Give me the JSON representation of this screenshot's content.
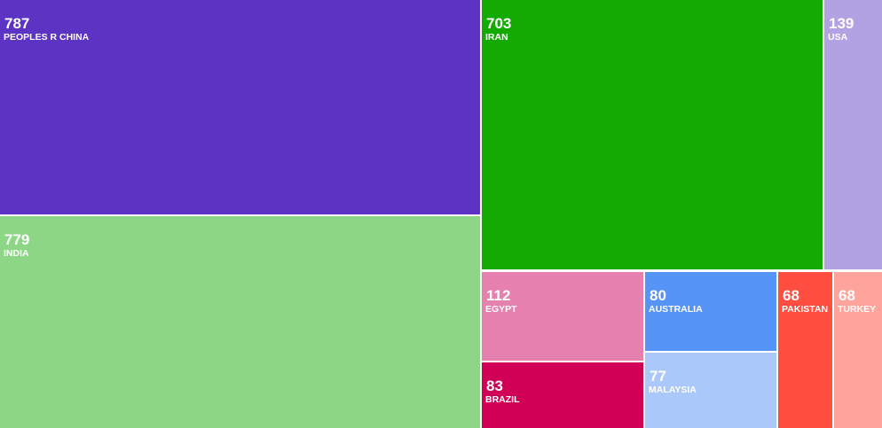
{
  "chart_data": {
    "type": "treemap",
    "title": "",
    "items": [
      {
        "name": "PEOPLES R CHINA",
        "value": 787,
        "color": "#5c33c2"
      },
      {
        "name": "INDIA",
        "value": 779,
        "color": "#8dd685"
      },
      {
        "name": "IRAN",
        "value": 703,
        "color": "#14aa04"
      },
      {
        "name": "USA",
        "value": 139,
        "color": "#b3a2e3"
      },
      {
        "name": "EGYPT",
        "value": 112,
        "color": "#e680ae"
      },
      {
        "name": "BRAZIL",
        "value": 83,
        "color": "#d00056"
      },
      {
        "name": "AUSTRALIA",
        "value": 80,
        "color": "#5794f8"
      },
      {
        "name": "MALAYSIA",
        "value": 77,
        "color": "#aac8f9"
      },
      {
        "name": "PAKISTAN",
        "value": 68,
        "color": "#ff4e40"
      },
      {
        "name": "TURKEY",
        "value": 68,
        "color": "#ffa49c"
      }
    ]
  }
}
